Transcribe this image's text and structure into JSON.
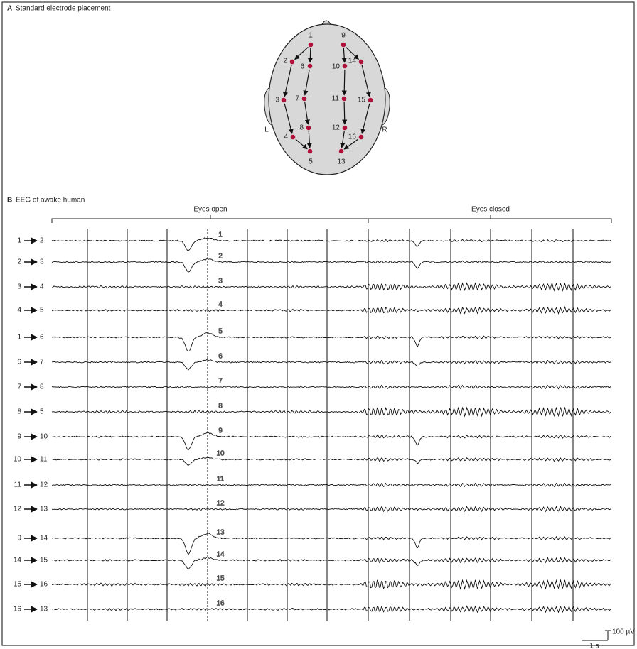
{
  "panel_a": {
    "label": "A",
    "title": "Standard electrode placement",
    "electrodes": [
      "1",
      "2",
      "3",
      "4",
      "5",
      "6",
      "7",
      "8",
      "9",
      "10",
      "11",
      "12",
      "13",
      "14",
      "15",
      "16"
    ],
    "side_labels": [
      "L",
      "R"
    ]
  },
  "panel_b": {
    "label": "B",
    "title": "EEG of awake human",
    "conditions": [
      "Eyes open",
      "Eyes closed"
    ],
    "channels": [
      {
        "from": "1",
        "to": "2"
      },
      {
        "from": "2",
        "to": "3"
      },
      {
        "from": "3",
        "to": "4"
      },
      {
        "from": "4",
        "to": "5"
      },
      {
        "from": "1",
        "to": "6"
      },
      {
        "from": "6",
        "to": "7"
      },
      {
        "from": "7",
        "to": "8"
      },
      {
        "from": "8",
        "to": "5"
      },
      {
        "from": "9",
        "to": "10"
      },
      {
        "from": "10",
        "to": "11"
      },
      {
        "from": "11",
        "to": "12"
      },
      {
        "from": "12",
        "to": "13"
      },
      {
        "from": "9",
        "to": "14"
      },
      {
        "from": "14",
        "to": "15"
      },
      {
        "from": "15",
        "to": "16"
      },
      {
        "from": "16",
        "to": "13"
      }
    ],
    "trace_numbers": [
      "1",
      "2",
      "3",
      "4",
      "5",
      "6",
      "7",
      "8",
      "9",
      "10",
      "11",
      "12",
      "13",
      "14",
      "15",
      "16"
    ],
    "scale": {
      "amplitude": "100 µV",
      "time": "1 s"
    }
  }
}
